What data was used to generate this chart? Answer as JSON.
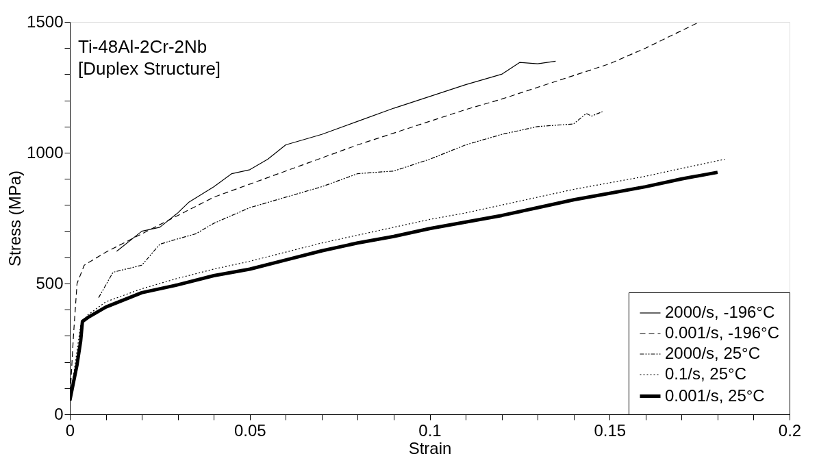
{
  "chart_data": {
    "type": "line",
    "xlabel": "Strain",
    "ylabel": "Stress (MPa)",
    "annotations": [
      "Ti-48Al-2Cr-2Nb",
      "[Duplex Structure]"
    ],
    "xlim": [
      0,
      0.2
    ],
    "ylim": [
      0,
      1500
    ],
    "xticks": [
      0,
      {
        "value": 0.01,
        "label": null
      },
      {
        "value": 0.02,
        "label": null
      },
      {
        "value": 0.03,
        "label": null
      },
      {
        "value": 0.04,
        "label": null
      },
      0.05,
      {
        "value": 0.06,
        "label": null
      },
      {
        "value": 0.07,
        "label": null
      },
      {
        "value": 0.08,
        "label": null
      },
      {
        "value": 0.09,
        "label": null
      },
      0.1,
      {
        "value": 0.11,
        "label": null
      },
      {
        "value": 0.12,
        "label": null
      },
      {
        "value": 0.13,
        "label": null
      },
      {
        "value": 0.14,
        "label": null
      },
      0.15,
      {
        "value": 0.16,
        "label": null
      },
      {
        "value": 0.17,
        "label": null
      },
      {
        "value": 0.18,
        "label": null
      },
      {
        "value": 0.19,
        "label": null
      },
      0.2
    ],
    "yticks": [
      0,
      {
        "value": 100,
        "label": null
      },
      {
        "value": 200,
        "label": null
      },
      {
        "value": 300,
        "label": null
      },
      {
        "value": 400,
        "label": null
      },
      500,
      {
        "value": 600,
        "label": null
      },
      {
        "value": 700,
        "label": null
      },
      {
        "value": 800,
        "label": null
      },
      {
        "value": 900,
        "label": null
      },
      1000,
      {
        "value": 1100,
        "label": null
      },
      {
        "value": 1200,
        "label": null
      },
      {
        "value": 1300,
        "label": null
      },
      {
        "value": 1400,
        "label": null
      },
      1500
    ],
    "grid": false,
    "legend": "bottom right",
    "marker": "none",
    "series": [
      {
        "name": "2000/s, -196°C",
        "color": "#000000",
        "line_style": "solid",
        "x": [
          0.013,
          0.02,
          0.025,
          0.03,
          0.033,
          0.04,
          0.045,
          0.05,
          0.055,
          0.06,
          0.07,
          0.08,
          0.09,
          0.1,
          0.11,
          0.12,
          0.125,
          0.13,
          0.135
        ],
        "values": [
          623,
          700,
          715,
          770,
          810,
          870,
          920,
          935,
          975,
          1030,
          1070,
          1120,
          1170,
          1215,
          1260,
          1300,
          1345,
          1340,
          1350
        ]
      },
      {
        "name": "0.001/s, -196°C",
        "color": "#000000",
        "line_style": "dashed",
        "x": [
          0,
          0.001,
          0.002,
          0.004,
          0.01,
          0.02,
          0.03,
          0.04,
          0.05,
          0.06,
          0.07,
          0.08,
          0.09,
          0.1,
          0.11,
          0.12,
          0.13,
          0.14,
          0.15,
          0.16,
          0.175
        ],
        "values": [
          50,
          300,
          500,
          570,
          620,
          690,
          760,
          830,
          880,
          930,
          980,
          1030,
          1075,
          1120,
          1165,
          1205,
          1250,
          1295,
          1340,
          1400,
          1500
        ]
      },
      {
        "name": "2000/s, 25°C",
        "color": "#000000",
        "line_style": "dashdotdot",
        "x": [
          0.008,
          0.012,
          0.02,
          0.025,
          0.028,
          0.035,
          0.04,
          0.05,
          0.06,
          0.07,
          0.08,
          0.09,
          0.1,
          0.11,
          0.12,
          0.13,
          0.14,
          0.1435,
          0.145,
          0.148
        ],
        "values": [
          446,
          543,
          570,
          650,
          663,
          690,
          730,
          790,
          830,
          870,
          920,
          930,
          975,
          1030,
          1070,
          1100,
          1110,
          1150,
          1140,
          1157
        ]
      },
      {
        "name": "0.1/s, 25°C",
        "color": "#000000",
        "line_style": "dotted",
        "x": [
          0,
          0.003,
          0.005,
          0.01,
          0.02,
          0.03,
          0.04,
          0.05,
          0.06,
          0.07,
          0.08,
          0.09,
          0.1,
          0.11,
          0.12,
          0.13,
          0.14,
          0.15,
          0.16,
          0.17,
          0.182
        ],
        "values": [
          50,
          340,
          380,
          430,
          480,
          520,
          555,
          585,
          620,
          655,
          685,
          715,
          745,
          770,
          800,
          830,
          860,
          885,
          910,
          940,
          975
        ]
      },
      {
        "name": "0.001/s, 25°C",
        "color": "#000000",
        "line_style": "solid",
        "x": [
          0,
          0.002,
          0.003,
          0.0035,
          0.005,
          0.01,
          0.02,
          0.03,
          0.04,
          0.05,
          0.06,
          0.07,
          0.08,
          0.09,
          0.1,
          0.11,
          0.12,
          0.13,
          0.14,
          0.15,
          0.16,
          0.17,
          0.18
        ],
        "values": [
          53,
          190,
          280,
          355,
          370,
          410,
          465,
          495,
          530,
          555,
          590,
          625,
          655,
          680,
          710,
          735,
          760,
          790,
          820,
          845,
          870,
          900,
          925
        ]
      }
    ]
  }
}
